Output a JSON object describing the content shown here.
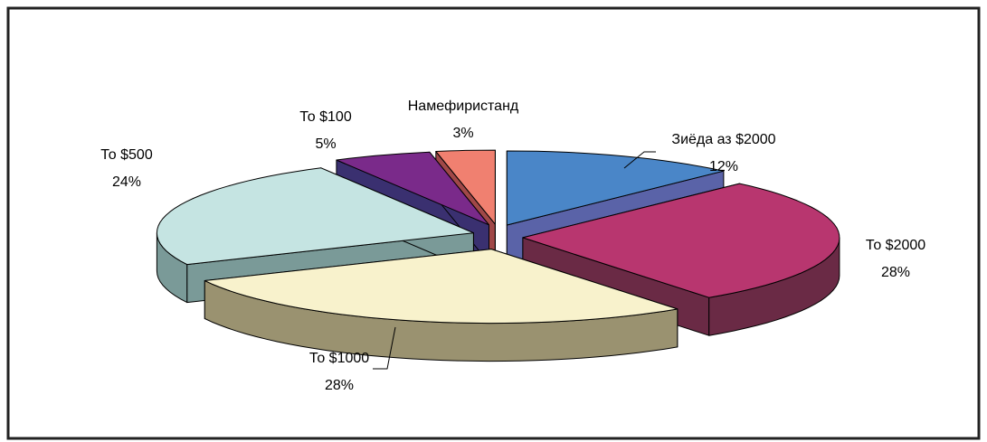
{
  "chart_data": {
    "type": "pie",
    "categories": [
      "Зиёда аз $2000",
      "То $2000",
      "То $1000",
      "То $500",
      "То $100",
      "Намефиристанд"
    ],
    "values": [
      12,
      28,
      28,
      24,
      5,
      3
    ],
    "value_labels": [
      "12%",
      "28%",
      "28%",
      "24%",
      "5%",
      "3%"
    ],
    "colors": [
      "#4a86c8",
      "#b8366f",
      "#f8f2cc",
      "#c5e4e2",
      "#7a2a8a",
      "#f08070"
    ],
    "side_colors": [
      "#5a63a8",
      "#6a2a45",
      "#9a9270",
      "#7a9a98",
      "#3a3070",
      "#a04848"
    ]
  }
}
